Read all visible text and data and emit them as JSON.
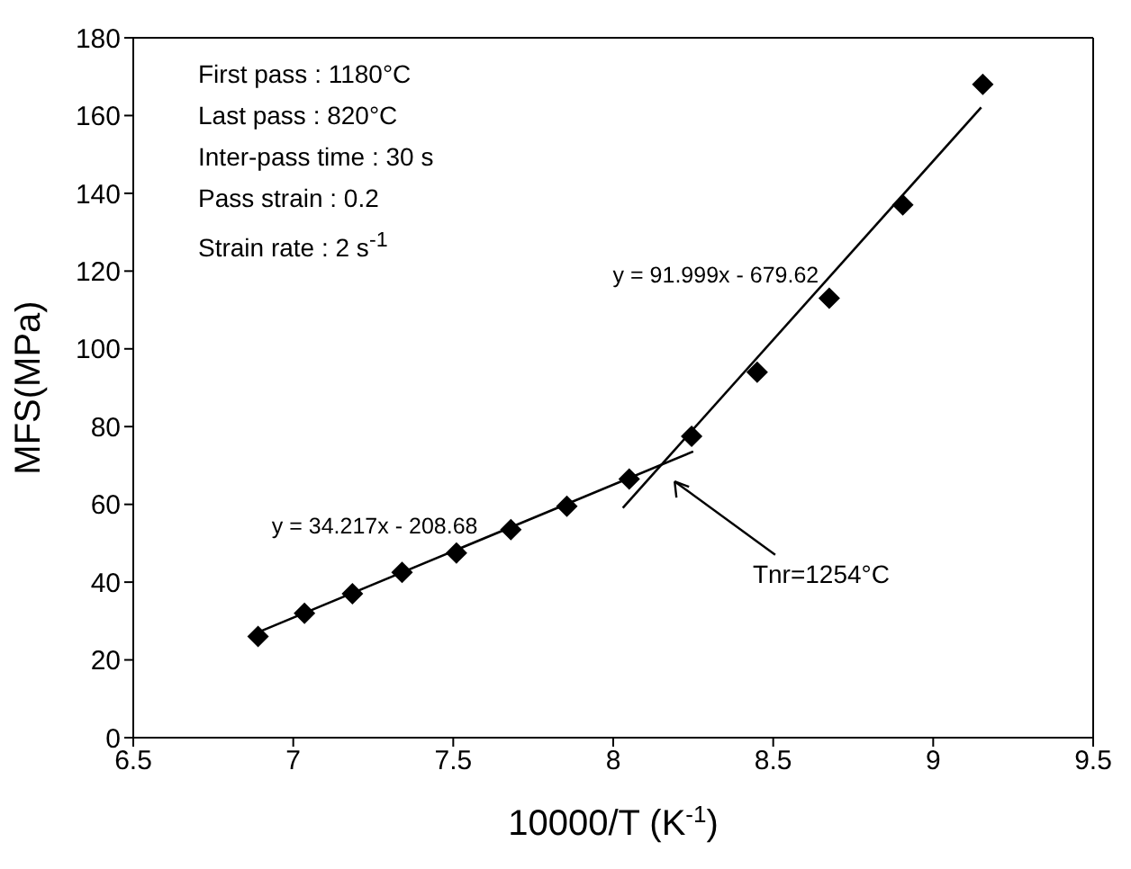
{
  "chart_data": {
    "type": "scatter",
    "xlabel": "10000/T (K$^{-1}$)",
    "ylabel": "MFS(MPa)",
    "xlim": [
      6.5,
      9.5
    ],
    "xticks": [
      6.5,
      7,
      7.5,
      8,
      8.5,
      9,
      9.5
    ],
    "ylim": [
      0,
      180
    ],
    "yticks": [
      0,
      20,
      40,
      60,
      80,
      100,
      120,
      140,
      160,
      180
    ],
    "legend": false,
    "marker": "diamond",
    "series": [
      {
        "color": "#000000",
        "x": [
          6.89,
          7.035,
          7.185,
          7.34,
          7.51,
          7.68,
          7.855,
          8.05,
          8.245,
          8.45,
          8.675,
          8.905,
          9.155
        ],
        "values": [
          26,
          32,
          37,
          42.5,
          47.5,
          53.5,
          59.5,
          66.5,
          77.5,
          94,
          113,
          137,
          168
        ]
      },
      {
        "type": "line",
        "color": "#000000",
        "marker": "none",
        "line_style": "solid",
        "x": [
          6.89,
          8.25
        ],
        "values": [
          27.1,
          73.6
        ]
      },
      {
        "type": "line",
        "color": "#000000",
        "marker": "none",
        "line_style": "solid",
        "x": [
          8.03,
          9.15
        ],
        "values": [
          59.1,
          162.1
        ]
      }
    ],
    "annotations": [
      "First pass : 1180°C",
      "Last pass : 820°C",
      "Inter-pass time : 30 s",
      "Pass strain : 0.2",
      "Strain rate : 2 s$^{-1}$",
      "y = 34.217x - 208.68",
      "y = 91.999x - 679.62",
      "Tnr=1254°C"
    ]
  }
}
